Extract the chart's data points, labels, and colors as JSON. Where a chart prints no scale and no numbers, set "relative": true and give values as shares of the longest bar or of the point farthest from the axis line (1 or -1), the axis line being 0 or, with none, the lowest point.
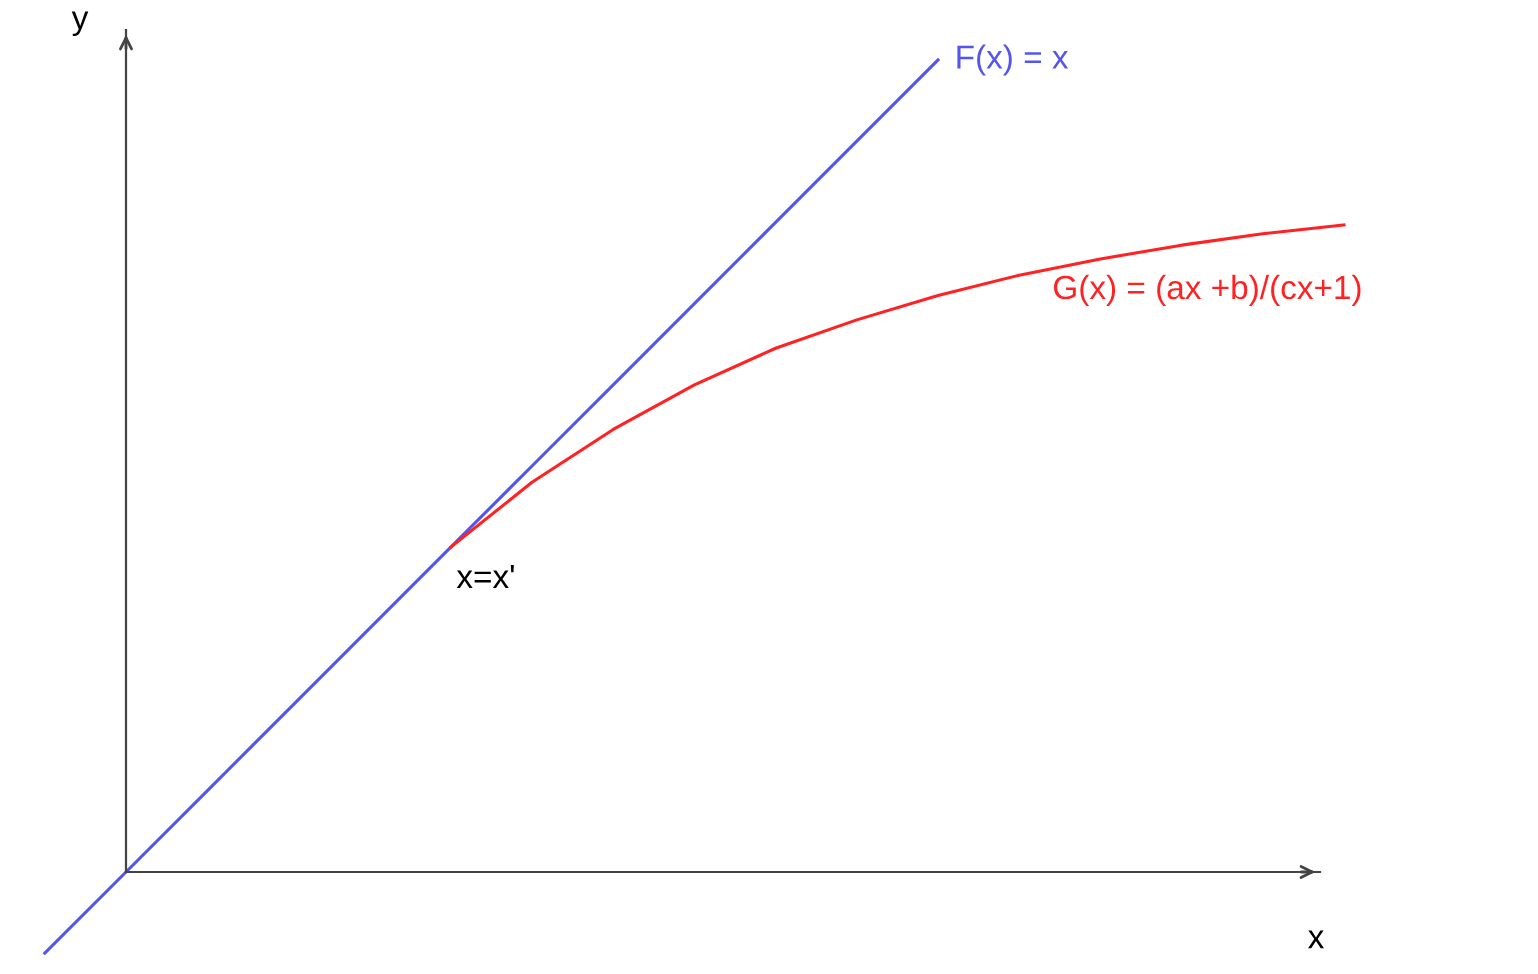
{
  "chart_data": {
    "type": "line",
    "relative": true,
    "xlabel": "x",
    "ylabel": "y",
    "legend": false,
    "marker": "none",
    "line_style": "solid",
    "categories": [
      null,
      null,
      null,
      null,
      null,
      null,
      null,
      null,
      null,
      null,
      null,
      null,
      null,
      null,
      null,
      null,
      null
    ],
    "series": [
      {
        "name": "F(x) = x",
        "color": "#5555ee",
        "values": [
          -0.1,
          0,
          0.1,
          0.2,
          0.3,
          0.4,
          0.5,
          0.6,
          0.7,
          0.8,
          0.9,
          1.0,
          null,
          null,
          null,
          null,
          null
        ]
      },
      {
        "name": "G(x) = (ax +b)/(cx+1)",
        "color": "#ff2222",
        "values": [
          null,
          null,
          null,
          null,
          null,
          0.4,
          0.48,
          0.545,
          0.6,
          0.645,
          0.68,
          0.71,
          0.735,
          0.755,
          0.772,
          0.786,
          0.797
        ]
      }
    ],
    "annotations": [
      "x=x'"
    ]
  }
}
